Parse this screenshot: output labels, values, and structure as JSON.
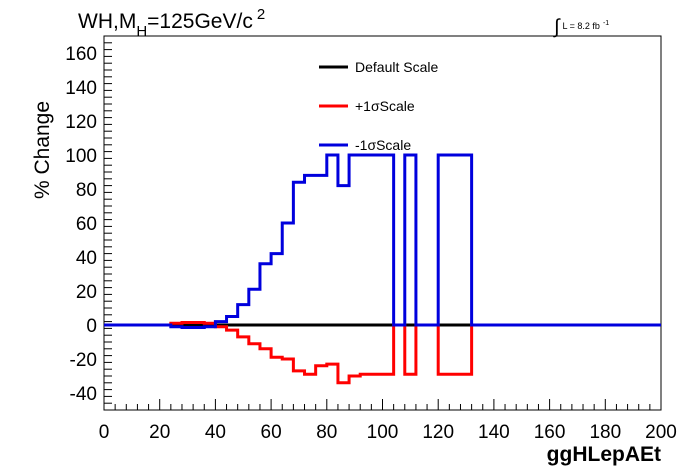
{
  "chart_data": {
    "type": "line",
    "title_main": "WH,M",
    "title_sub": "H",
    "title_rest": "=125GeV/c",
    "title_sup": "2",
    "lumi_text": "L = 8.2 fb",
    "lumi_sup": "-1",
    "integral_symbol": "∫",
    "xlabel": "ggHLepAEt",
    "ylabel": "% Change",
    "xlim": [
      0,
      200
    ],
    "ylim": [
      -50,
      170
    ],
    "display_clip_y": 100,
    "x_ticks": [
      0,
      20,
      40,
      60,
      80,
      100,
      120,
      140,
      160,
      180,
      200
    ],
    "y_ticks": [
      -40,
      -20,
      0,
      20,
      40,
      60,
      80,
      100,
      120,
      140,
      160
    ],
    "grid": false,
    "legend_position": "top-center",
    "series": [
      {
        "name": "Default Scale",
        "color": "#000000",
        "edges": [
          0,
          200
        ],
        "values": [
          0
        ]
      },
      {
        "name": "+1σScale",
        "color": "#ff0000",
        "edges": [
          0,
          20,
          24,
          28,
          32,
          36,
          40,
          44,
          48,
          52,
          56,
          60,
          64,
          68,
          72,
          76,
          80,
          84,
          88,
          92,
          96,
          100,
          104,
          108,
          112,
          116,
          120,
          124,
          128,
          132,
          200
        ],
        "values": [
          0,
          0,
          1,
          1.5,
          1.5,
          1,
          -1,
          -3,
          -7,
          -11,
          -14,
          -19,
          -20,
          -27,
          -29,
          -24,
          -23,
          -34,
          -30,
          -29,
          -29,
          -29,
          0,
          -29,
          0,
          0,
          -29,
          -29,
          -29,
          0
        ]
      },
      {
        "name": "-1σScale",
        "color": "#0000dd",
        "edges": [
          0,
          20,
          24,
          28,
          32,
          36,
          40,
          44,
          48,
          52,
          56,
          60,
          64,
          68,
          72,
          76,
          80,
          84,
          88,
          92,
          96,
          100,
          104,
          108,
          112,
          116,
          120,
          124,
          128,
          132,
          200
        ],
        "values": [
          0,
          0,
          -1,
          -1.5,
          -1.5,
          -1,
          2,
          5,
          12,
          21,
          36,
          42,
          60,
          84,
          88,
          88,
          100,
          82,
          100,
          100,
          100,
          100,
          0,
          100,
          0,
          0,
          100,
          100,
          100,
          0
        ]
      }
    ]
  }
}
